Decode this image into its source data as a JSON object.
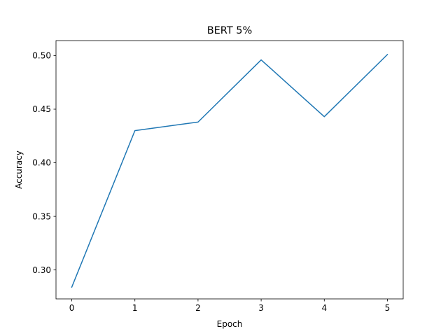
{
  "chart_data": {
    "type": "line",
    "title": "BERT 5%",
    "xlabel": "Epoch",
    "ylabel": "Accuracy",
    "x": [
      0,
      1,
      2,
      3,
      4,
      5
    ],
    "series": [
      {
        "values": [
          0.284,
          0.43,
          0.438,
          0.496,
          0.443,
          0.501
        ],
        "color": "#1f77b4"
      }
    ],
    "xlim": [
      -0.25,
      5.25
    ],
    "ylim": [
      0.273,
      0.514
    ],
    "xticks": [
      0,
      1,
      2,
      3,
      4,
      5
    ],
    "xtick_labels": [
      "0",
      "1",
      "2",
      "3",
      "4",
      "5"
    ],
    "yticks": [
      0.3,
      0.35,
      0.4,
      0.45,
      0.5
    ],
    "ytick_labels": [
      "0.30",
      "0.35",
      "0.40",
      "0.45",
      "0.50"
    ],
    "grid": false,
    "legend": "none"
  }
}
